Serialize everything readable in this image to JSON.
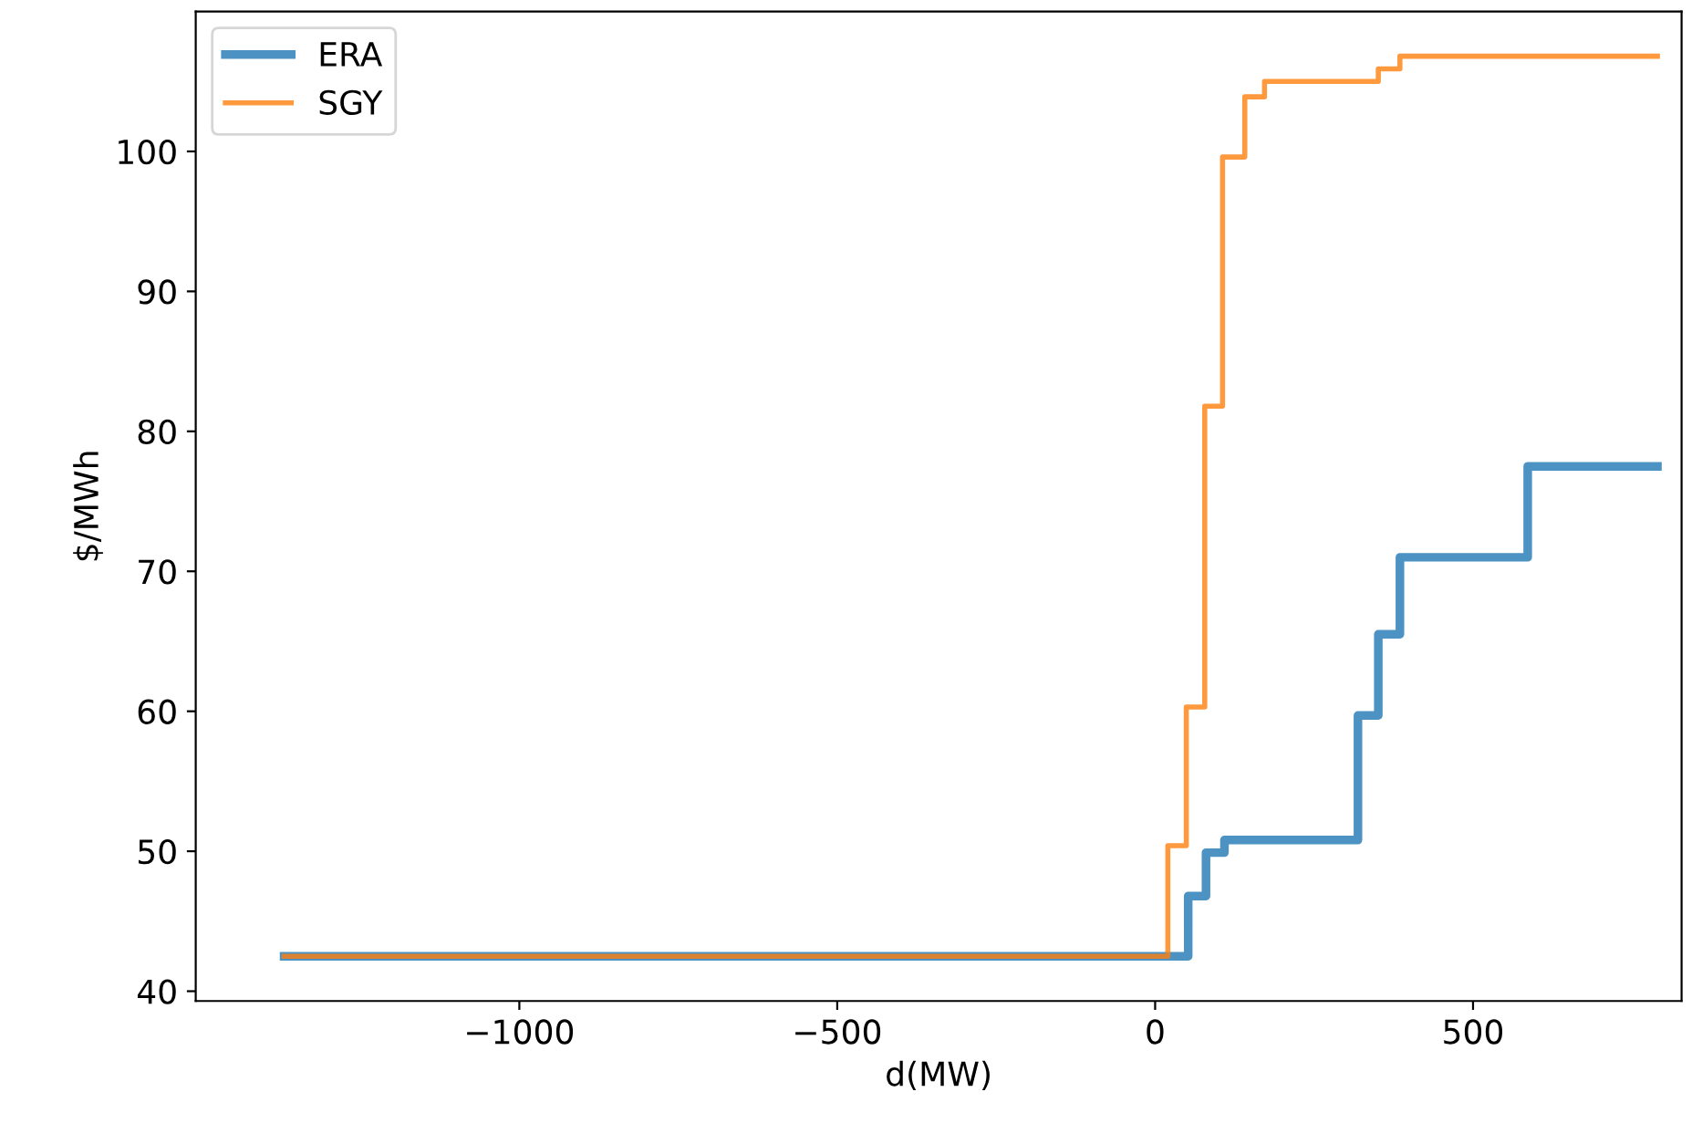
{
  "chart_data": {
    "type": "step",
    "xlabel": "d(MW)",
    "ylabel": "$/MWh",
    "xlim": [
      -1509,
      828
    ],
    "ylim": [
      39.3,
      110
    ],
    "xticks": [
      {
        "value": -1000,
        "label": "−1000"
      },
      {
        "value": -500,
        "label": "−500"
      },
      0,
      500
    ],
    "yticks": [
      40,
      50,
      60,
      70,
      80,
      90,
      100
    ],
    "legend": "top left",
    "grid": false,
    "series": [
      {
        "name": "ERA",
        "color": "#1f77b4",
        "x": [
          -1370,
          52,
          80,
          109,
          319,
          351,
          385,
          586,
          790
        ],
        "values": [
          42.5,
          46.8,
          49.9,
          50.8,
          59.7,
          65.5,
          71.0,
          77.5,
          77.5
        ]
      },
      {
        "name": "SGY",
        "color": "#ff7f0e",
        "x": [
          -1370,
          20,
          49,
          78,
          106,
          141,
          172,
          351,
          385,
          790
        ],
        "values": [
          42.5,
          50.4,
          60.3,
          81.8,
          99.6,
          103.9,
          105.0,
          105.9,
          106.8,
          106.8
        ]
      }
    ]
  }
}
